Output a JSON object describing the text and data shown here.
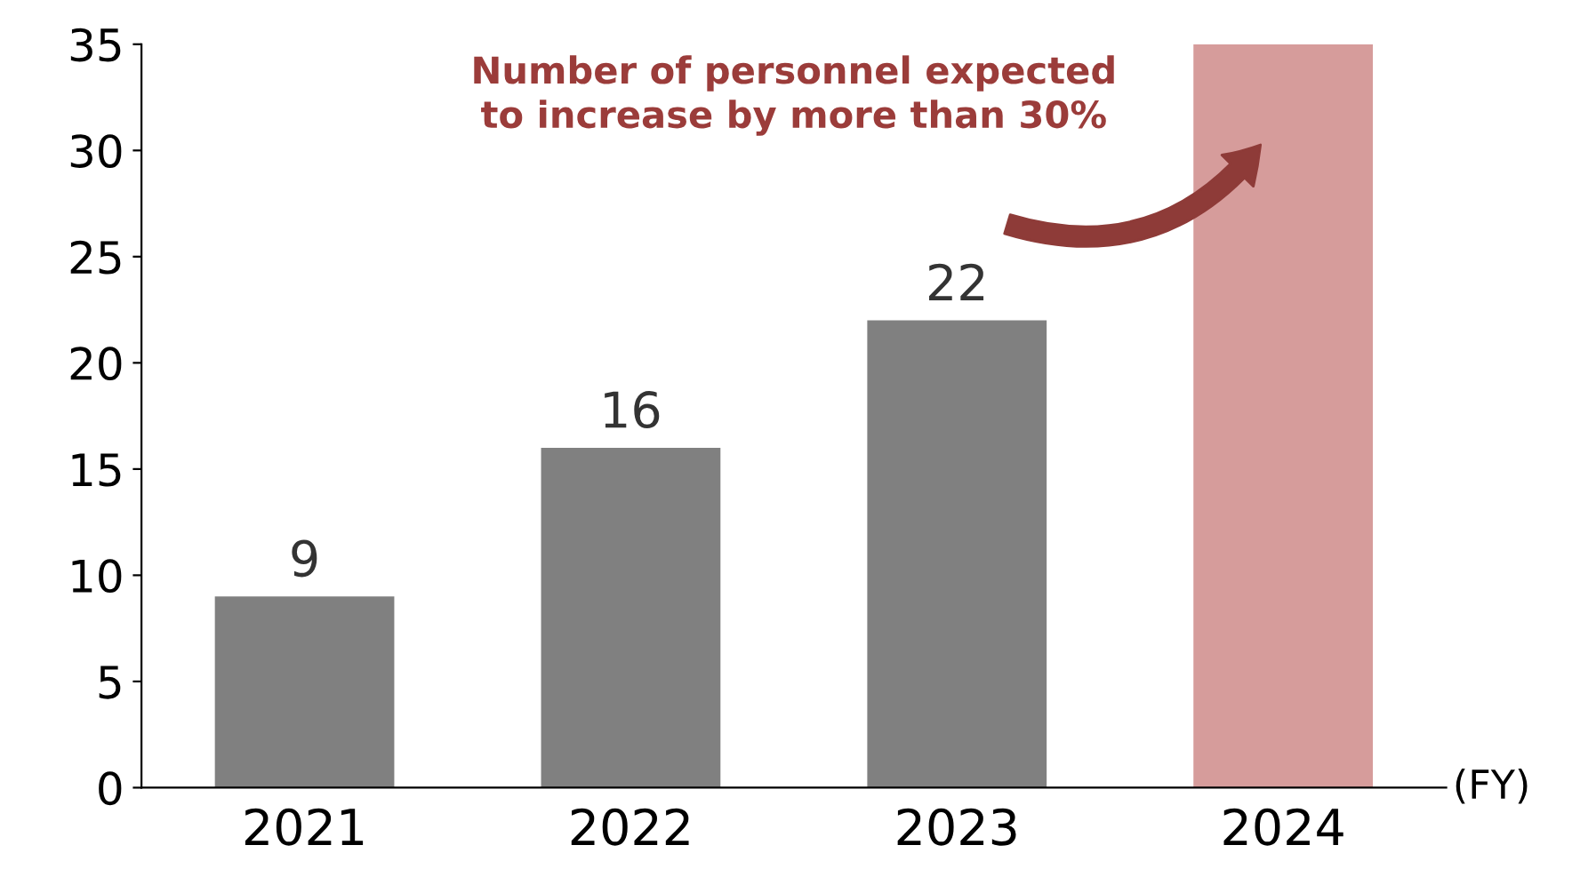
{
  "chart_data": {
    "type": "bar",
    "categories": [
      "2021",
      "2022",
      "2023",
      "2024"
    ],
    "values": [
      9,
      16,
      22,
      35
    ],
    "colors": [
      "#808080",
      "#808080",
      "#808080",
      "#d69c9b"
    ],
    "value_labels": [
      "9",
      "16",
      "22",
      null
    ],
    "xlabel": "(FY)",
    "ylim": [
      0,
      35
    ],
    "yticks": [
      0,
      5,
      10,
      15,
      20,
      25,
      30,
      35
    ],
    "grid": false,
    "annotations": [
      "Number of personnel expected\nto increase by more than 30%"
    ]
  }
}
